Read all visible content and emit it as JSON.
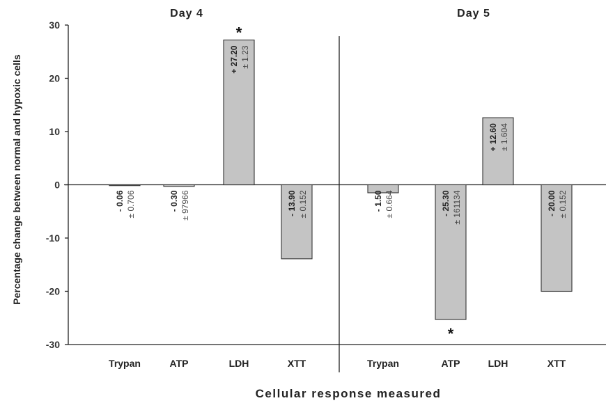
{
  "chart_data": {
    "type": "bar",
    "xlabel": "Cellular response measured",
    "ylabel": "Percentage change between normal and hypoxic cells",
    "ylim": [
      -30,
      30
    ],
    "yticks": [
      30,
      20,
      10,
      0,
      -10,
      -20,
      -30
    ],
    "grid": false,
    "bar_color": "#c4c4c4",
    "panels": [
      {
        "title": "Day 4",
        "categories": [
          "Trypan",
          "ATP",
          "LDH",
          "XTT"
        ],
        "values": [
          -0.06,
          -0.3,
          27.2,
          -13.9
        ],
        "value_labels": [
          "- 0.06",
          "- 0.30",
          "+ 27.20",
          "- 13.90"
        ],
        "error_labels": [
          "± 0.706",
          "± 97966",
          "± 1.23",
          "± 0.152"
        ],
        "significance": [
          "",
          "",
          "*",
          ""
        ]
      },
      {
        "title": "Day 5",
        "categories": [
          "Trypan",
          "ATP",
          "LDH",
          "XTT"
        ],
        "values": [
          -1.5,
          -25.3,
          12.6,
          -20.0
        ],
        "value_labels": [
          "- 1.50",
          "- 25.30",
          "+ 12.60",
          "- 20.00"
        ],
        "error_labels": [
          "± 0.664",
          "± 161134",
          "± 1.604",
          "± 0.152"
        ],
        "significance": [
          "",
          "*",
          "",
          ""
        ]
      }
    ]
  }
}
